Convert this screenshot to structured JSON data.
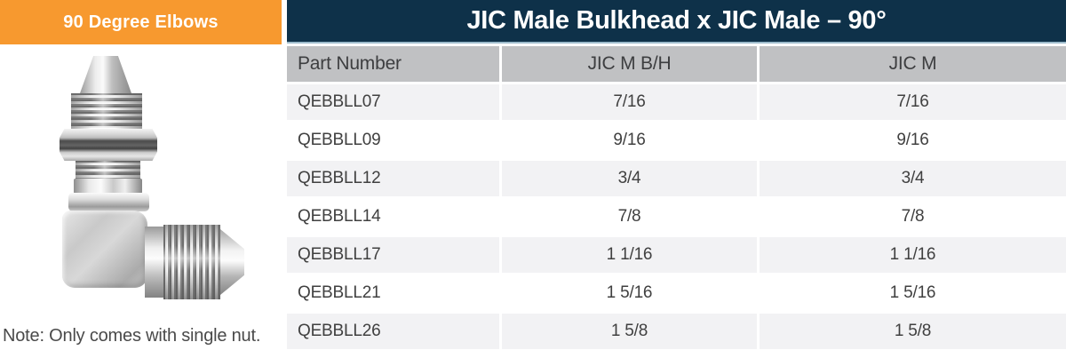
{
  "banner": {
    "label": "90 Degree Elbows"
  },
  "product": {
    "note": "Note: Only comes with single nut."
  },
  "table": {
    "title": "JIC Male Bulkhead x JIC Male – 90°",
    "columns": [
      "Part Number",
      "JIC M B/H",
      "JIC M"
    ],
    "rows": [
      {
        "part_number": "QEBBLL07",
        "jic_m_bh": "7/16",
        "jic_m": "7/16"
      },
      {
        "part_number": "QEBBLL09",
        "jic_m_bh": "9/16",
        "jic_m": "9/16"
      },
      {
        "part_number": "QEBBLL12",
        "jic_m_bh": "3/4",
        "jic_m": "3/4"
      },
      {
        "part_number": "QEBBLL14",
        "jic_m_bh": "7/8",
        "jic_m": "7/8"
      },
      {
        "part_number": "QEBBLL17",
        "jic_m_bh": "1 1/16",
        "jic_m": "1 1/16"
      },
      {
        "part_number": "QEBBLL21",
        "jic_m_bh": "1 5/16",
        "jic_m": "1 5/16"
      },
      {
        "part_number": "QEBBLL26",
        "jic_m_bh": "1 5/8",
        "jic_m": "1 5/8"
      }
    ]
  },
  "colors": {
    "banner_orange": "#F7992F",
    "title_navy": "#0E3149",
    "title_underline": "#9DBBCC",
    "header_gray": "#C0C1C3",
    "row_shaded": "#F2F2F4",
    "text_dark": "#404040",
    "text_white": "#FFFFFF"
  }
}
